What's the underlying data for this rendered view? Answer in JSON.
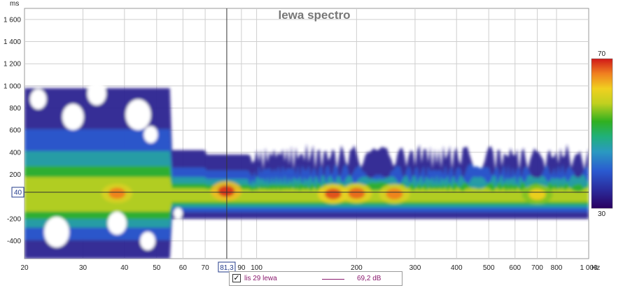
{
  "chart_data": {
    "type": "heatmap",
    "title": "lewa spectro",
    "ylabel": "ms",
    "x_scale": "log",
    "xlim": [
      20,
      1000
    ],
    "ylim": [
      -560,
      1700
    ],
    "x_unit": "Hz",
    "x_ticks": [
      20,
      30,
      40,
      50,
      60,
      70,
      90,
      100,
      200,
      300,
      400,
      500,
      600,
      700,
      800,
      1000
    ],
    "x_tick_labels": [
      "20",
      "30",
      "40",
      "50",
      "60",
      "70",
      "90",
      "100",
      "200",
      "300",
      "400",
      "500",
      "600",
      "700",
      "800",
      "1 000"
    ],
    "y_ticks": [
      -400,
      -200,
      200,
      400,
      600,
      800,
      1000,
      1200,
      1400,
      1600
    ],
    "y_tick_labels": [
      "-400",
      "-200",
      "200",
      "400",
      "600",
      "800",
      "1 000",
      "1 200",
      "1 400",
      "1 600"
    ],
    "colorbar": {
      "min": 30,
      "max": 70,
      "min_label": "30",
      "max_label": "70"
    },
    "cursor": {
      "x": 81.3,
      "y": 40,
      "x_label": "81,3",
      "y_label": "40"
    },
    "hotspots": [
      {
        "freq": 38,
        "time": 30,
        "level": 66
      },
      {
        "freq": 81,
        "time": 50,
        "level": 69
      },
      {
        "freq": 170,
        "time": 25,
        "level": 68
      },
      {
        "freq": 200,
        "time": 30,
        "level": 67
      },
      {
        "freq": 260,
        "time": 25,
        "level": 66
      },
      {
        "freq": 700,
        "time": 20,
        "level": 62
      }
    ]
  },
  "legend": {
    "series_name": "lis 29 lewa",
    "value": "69,2 dB",
    "color": "#8a1a6e",
    "checked": true
  }
}
